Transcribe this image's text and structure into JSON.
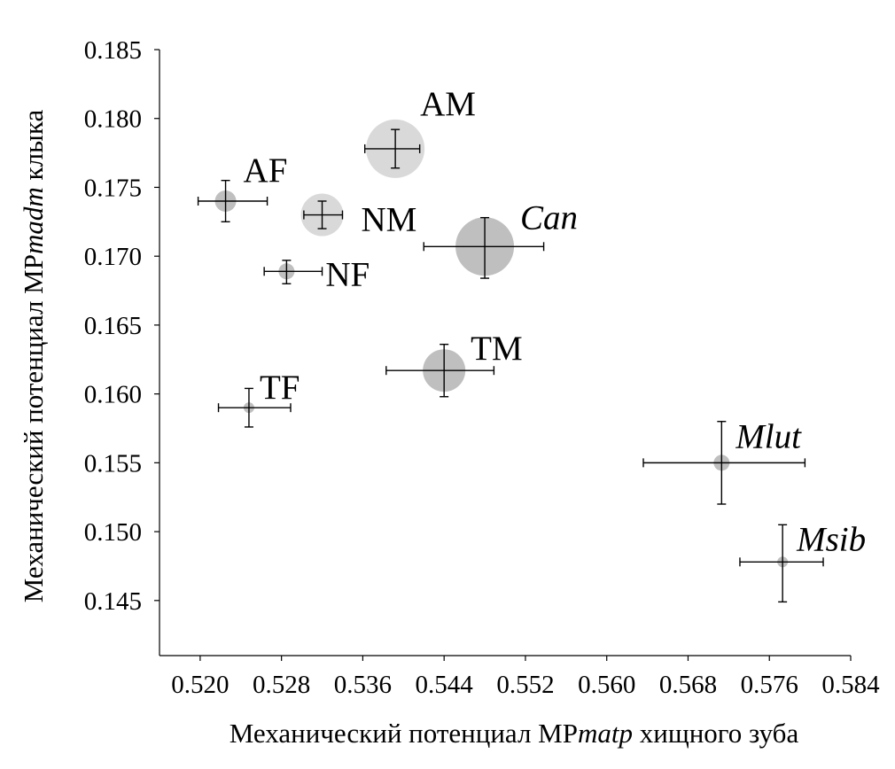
{
  "chart_data": {
    "type": "scatter",
    "xlabel": {
      "prefix": "Механический потенциал MP",
      "italic": "matp",
      "suffix": " хищного зуба"
    },
    "ylabel": {
      "prefix": "Механический потенциал MP",
      "italic": "madm",
      "suffix": " клыка"
    },
    "xlim": [
      0.516,
      0.584
    ],
    "ylim": [
      0.141,
      0.185
    ],
    "xticks": [
      "0.520",
      "0.528",
      "0.536",
      "0.544",
      "0.552",
      "0.560",
      "0.568",
      "0.576",
      "0.584"
    ],
    "yticks": [
      "0.145",
      "0.150",
      "0.155",
      "0.160",
      "0.165",
      "0.170",
      "0.175",
      "0.180",
      "0.185"
    ],
    "points": [
      {
        "label": "AM",
        "italic": false,
        "x": 0.5392,
        "y": 0.1778,
        "xerr": [
          0.5362,
          0.5416
        ],
        "yerr": [
          0.1764,
          0.1792
        ],
        "size": 3,
        "fill": "#d9d9d9"
      },
      {
        "label": "AF",
        "italic": false,
        "x": 0.5225,
        "y": 0.174,
        "xerr": [
          0.5198,
          0.5266
        ],
        "yerr": [
          0.1725,
          0.1755
        ],
        "size": 1,
        "fill": "#bfbfbf"
      },
      {
        "label": "NM",
        "italic": false,
        "x": 0.532,
        "y": 0.173,
        "xerr": [
          0.5302,
          0.534
        ],
        "yerr": [
          0.172,
          0.174
        ],
        "size": 2,
        "fill": "#d9d9d9"
      },
      {
        "label": "Can",
        "italic": true,
        "x": 0.548,
        "y": 0.1707,
        "xerr": [
          0.542,
          0.5538
        ],
        "yerr": [
          0.1684,
          0.1728
        ],
        "size": 3,
        "fill": "#bfbfbf"
      },
      {
        "label": "NF",
        "italic": false,
        "x": 0.5285,
        "y": 0.1689,
        "xerr": [
          0.5263,
          0.532
        ],
        "yerr": [
          0.168,
          0.1697
        ],
        "size": 0,
        "fill": "#bfbfbf"
      },
      {
        "label": "TM",
        "italic": false,
        "x": 0.544,
        "y": 0.1617,
        "xerr": [
          0.5383,
          0.5489
        ],
        "yerr": [
          0.1598,
          0.1636
        ],
        "size": 2,
        "fill": "#bfbfbf"
      },
      {
        "label": "TF",
        "italic": false,
        "x": 0.5248,
        "y": 0.159,
        "xerr": [
          0.5218,
          0.5289
        ],
        "yerr": [
          0.1576,
          0.1604
        ],
        "size": -1,
        "fill": "#bfbfbf"
      },
      {
        "label": "Mlut",
        "italic": true,
        "x": 0.5713,
        "y": 0.155,
        "xerr": [
          0.5636,
          0.5795
        ],
        "yerr": [
          0.152,
          0.158
        ],
        "size": 0,
        "fill": "#bfbfbf"
      },
      {
        "label": "Msib",
        "italic": true,
        "x": 0.5773,
        "y": 0.1478,
        "xerr": [
          0.5731,
          0.5813
        ],
        "yerr": [
          0.1449,
          0.1505
        ],
        "size": -1,
        "fill": "#bfbfbf"
      }
    ]
  }
}
